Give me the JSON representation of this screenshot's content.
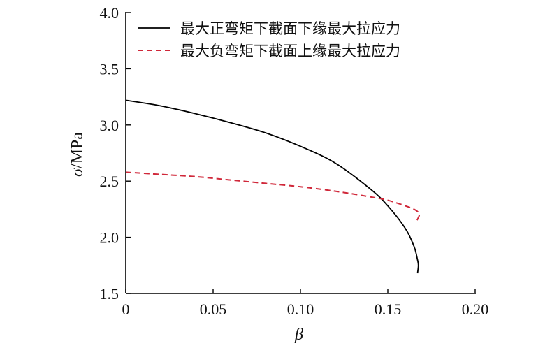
{
  "chart_data": {
    "type": "line",
    "xlabel": "β",
    "ylabel_symbol": "σ",
    "ylabel_unit": "/MPa",
    "xlim": [
      0,
      0.2
    ],
    "ylim": [
      1.5,
      4.0
    ],
    "x_ticks": [
      0,
      0.05,
      0.1,
      0.15,
      0.2
    ],
    "x_tick_labels": [
      "0",
      "0.05",
      "0.10",
      "0.15",
      "0.20"
    ],
    "y_ticks": [
      1.5,
      2.0,
      2.5,
      3.0,
      3.5,
      4.0
    ],
    "y_tick_labels": [
      "1.5",
      "2.0",
      "2.5",
      "3.0",
      "3.5",
      "4.0"
    ],
    "grid": false,
    "legend_position": "top-right",
    "series": [
      {
        "name": "最大正弯矩下截面下缘最大拉应力",
        "color": "#000000",
        "style": "solid",
        "points": [
          [
            0,
            3.22
          ],
          [
            0.02,
            3.17
          ],
          [
            0.04,
            3.1
          ],
          [
            0.06,
            3.02
          ],
          [
            0.08,
            2.93
          ],
          [
            0.1,
            2.81
          ],
          [
            0.12,
            2.66
          ],
          [
            0.14,
            2.43
          ],
          [
            0.15,
            2.28
          ],
          [
            0.16,
            2.08
          ],
          [
            0.165,
            1.92
          ],
          [
            0.167,
            1.8
          ],
          [
            0.1675,
            1.75
          ],
          [
            0.167,
            1.68
          ]
        ]
      },
      {
        "name": "最大负弯矩下截面上缘最大拉应力",
        "color": "#d0283a",
        "style": "dashed",
        "points": [
          [
            0,
            2.58
          ],
          [
            0.02,
            2.56
          ],
          [
            0.04,
            2.54
          ],
          [
            0.06,
            2.51
          ],
          [
            0.08,
            2.48
          ],
          [
            0.1,
            2.45
          ],
          [
            0.12,
            2.41
          ],
          [
            0.14,
            2.36
          ],
          [
            0.15,
            2.33
          ],
          [
            0.16,
            2.28
          ],
          [
            0.165,
            2.25
          ],
          [
            0.168,
            2.21
          ],
          [
            0.167,
            2.16
          ],
          [
            0.166,
            2.14
          ]
        ]
      }
    ]
  }
}
